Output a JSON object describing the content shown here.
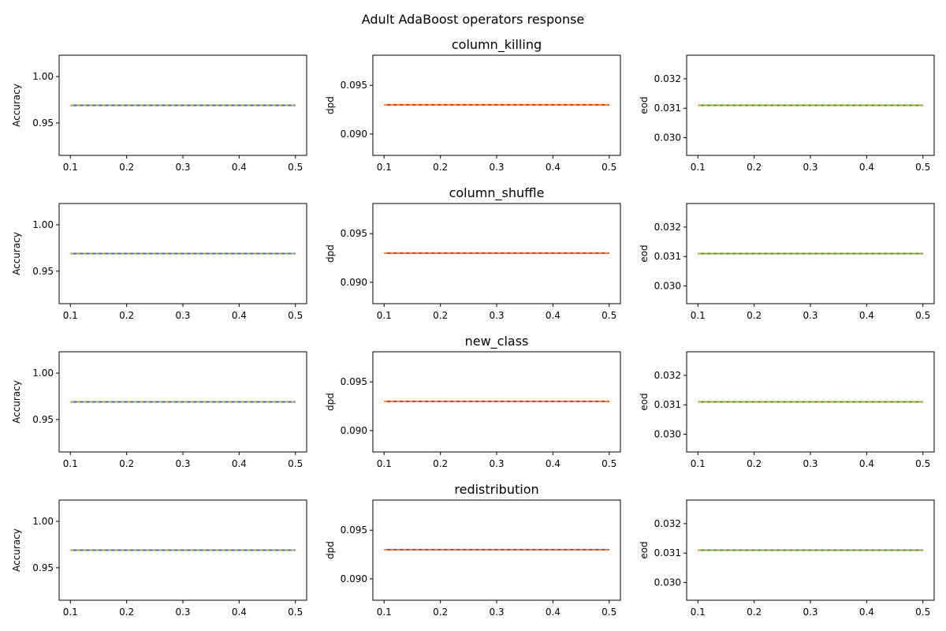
{
  "figure": {
    "suptitle": "Adult AdaBoost operators response"
  },
  "chart_data": [
    {
      "type": "line",
      "row": 0,
      "col": 0,
      "title": "",
      "xlabel": "",
      "ylabel": "Accuracy",
      "x": [
        0.1,
        0.5
      ],
      "xlim": [
        0.08,
        0.52
      ],
      "xticks": [
        "0.1",
        "0.2",
        "0.3",
        "0.4",
        "0.5"
      ],
      "ylim": [
        0.915,
        1.023
      ],
      "yticks": [
        "0.95",
        "1.00"
      ],
      "series": [
        {
          "values": [
            0.969,
            0.969
          ],
          "color": "#1f77b4",
          "dash": "solid"
        },
        {
          "values": [
            0.969,
            0.969
          ],
          "color": "#ff9f1c",
          "dash": "dashed"
        }
      ]
    },
    {
      "type": "line",
      "row": 0,
      "col": 1,
      "title": "column_killing",
      "xlabel": "",
      "ylabel": "dpd",
      "x": [
        0.1,
        0.5
      ],
      "xlim": [
        0.08,
        0.52
      ],
      "xticks": [
        "0.1",
        "0.2",
        "0.3",
        "0.4",
        "0.5"
      ],
      "ylim": [
        0.0878,
        0.0981
      ],
      "yticks": [
        "0.090",
        "0.095"
      ],
      "series": [
        {
          "values": [
            0.093,
            0.093
          ],
          "color": "#d62728",
          "dash": "solid"
        },
        {
          "values": [
            0.093,
            0.093
          ],
          "color": "#ff9f1c",
          "dash": "dashed"
        }
      ]
    },
    {
      "type": "line",
      "row": 0,
      "col": 2,
      "title": "",
      "xlabel": "",
      "ylabel": "eod",
      "x": [
        0.1,
        0.5
      ],
      "xlim": [
        0.08,
        0.52
      ],
      "xticks": [
        "0.1",
        "0.2",
        "0.3",
        "0.4",
        "0.5"
      ],
      "ylim": [
        0.0294,
        0.0328
      ],
      "yticks": [
        "0.030",
        "0.031",
        "0.032"
      ],
      "series": [
        {
          "values": [
            0.0311,
            0.0311
          ],
          "color": "#2ca02c",
          "dash": "solid"
        },
        {
          "values": [
            0.0311,
            0.0311
          ],
          "color": "#ff9f1c",
          "dash": "dashed"
        }
      ]
    },
    {
      "type": "line",
      "row": 1,
      "col": 0,
      "title": "",
      "xlabel": "",
      "ylabel": "Accuracy",
      "x": [
        0.1,
        0.5
      ],
      "xlim": [
        0.08,
        0.52
      ],
      "xticks": [
        "0.1",
        "0.2",
        "0.3",
        "0.4",
        "0.5"
      ],
      "ylim": [
        0.915,
        1.023
      ],
      "yticks": [
        "0.95",
        "1.00"
      ],
      "series": [
        {
          "values": [
            0.969,
            0.969
          ],
          "color": "#1f77b4",
          "dash": "solid"
        },
        {
          "values": [
            0.969,
            0.969
          ],
          "color": "#ff9f1c",
          "dash": "dashed"
        }
      ]
    },
    {
      "type": "line",
      "row": 1,
      "col": 1,
      "title": "column_shuffle",
      "xlabel": "",
      "ylabel": "dpd",
      "x": [
        0.1,
        0.5
      ],
      "xlim": [
        0.08,
        0.52
      ],
      "xticks": [
        "0.1",
        "0.2",
        "0.3",
        "0.4",
        "0.5"
      ],
      "ylim": [
        0.0878,
        0.0981
      ],
      "yticks": [
        "0.090",
        "0.095"
      ],
      "series": [
        {
          "values": [
            0.093,
            0.093
          ],
          "color": "#d62728",
          "dash": "solid"
        },
        {
          "values": [
            0.093,
            0.093
          ],
          "color": "#ff9f1c",
          "dash": "dashed"
        }
      ]
    },
    {
      "type": "line",
      "row": 1,
      "col": 2,
      "title": "",
      "xlabel": "",
      "ylabel": "eod",
      "x": [
        0.1,
        0.5
      ],
      "xlim": [
        0.08,
        0.52
      ],
      "xticks": [
        "0.1",
        "0.2",
        "0.3",
        "0.4",
        "0.5"
      ],
      "ylim": [
        0.0294,
        0.0328
      ],
      "yticks": [
        "0.030",
        "0.031",
        "0.032"
      ],
      "series": [
        {
          "values": [
            0.0311,
            0.0311
          ],
          "color": "#2ca02c",
          "dash": "solid"
        },
        {
          "values": [
            0.0311,
            0.0311
          ],
          "color": "#ff9f1c",
          "dash": "dashed"
        }
      ]
    },
    {
      "type": "line",
      "row": 2,
      "col": 0,
      "title": "",
      "xlabel": "",
      "ylabel": "Accuracy",
      "x": [
        0.1,
        0.5
      ],
      "xlim": [
        0.08,
        0.52
      ],
      "xticks": [
        "0.1",
        "0.2",
        "0.3",
        "0.4",
        "0.5"
      ],
      "ylim": [
        0.915,
        1.023
      ],
      "yticks": [
        "0.95",
        "1.00"
      ],
      "series": [
        {
          "values": [
            0.969,
            0.969
          ],
          "color": "#1f77b4",
          "dash": "solid"
        },
        {
          "values": [
            0.969,
            0.969
          ],
          "color": "#ff9f1c",
          "dash": "dashed"
        }
      ]
    },
    {
      "type": "line",
      "row": 2,
      "col": 1,
      "title": "new_class",
      "xlabel": "",
      "ylabel": "dpd",
      "x": [
        0.1,
        0.5
      ],
      "xlim": [
        0.08,
        0.52
      ],
      "xticks": [
        "0.1",
        "0.2",
        "0.3",
        "0.4",
        "0.5"
      ],
      "ylim": [
        0.0878,
        0.0981
      ],
      "yticks": [
        "0.090",
        "0.095"
      ],
      "series": [
        {
          "values": [
            0.093,
            0.093
          ],
          "color": "#d62728",
          "dash": "solid"
        },
        {
          "values": [
            0.093,
            0.093
          ],
          "color": "#ff9f1c",
          "dash": "dashed"
        }
      ]
    },
    {
      "type": "line",
      "row": 2,
      "col": 2,
      "title": "",
      "xlabel": "",
      "ylabel": "eod",
      "x": [
        0.1,
        0.5
      ],
      "xlim": [
        0.08,
        0.52
      ],
      "xticks": [
        "0.1",
        "0.2",
        "0.3",
        "0.4",
        "0.5"
      ],
      "ylim": [
        0.0294,
        0.0328
      ],
      "yticks": [
        "0.030",
        "0.031",
        "0.032"
      ],
      "series": [
        {
          "values": [
            0.0311,
            0.0311
          ],
          "color": "#2ca02c",
          "dash": "solid"
        },
        {
          "values": [
            0.0311,
            0.0311
          ],
          "color": "#ff9f1c",
          "dash": "dashed"
        }
      ]
    },
    {
      "type": "line",
      "row": 3,
      "col": 0,
      "title": "",
      "xlabel": "",
      "ylabel": "Accuracy",
      "x": [
        0.1,
        0.5
      ],
      "xlim": [
        0.08,
        0.52
      ],
      "xticks": [
        "0.1",
        "0.2",
        "0.3",
        "0.4",
        "0.5"
      ],
      "ylim": [
        0.915,
        1.023
      ],
      "yticks": [
        "0.95",
        "1.00"
      ],
      "series": [
        {
          "values": [
            0.969,
            0.969
          ],
          "color": "#1f77b4",
          "dash": "solid"
        },
        {
          "values": [
            0.969,
            0.969
          ],
          "color": "#ff9f1c",
          "dash": "dashed"
        }
      ]
    },
    {
      "type": "line",
      "row": 3,
      "col": 1,
      "title": "redistribution",
      "xlabel": "",
      "ylabel": "dpd",
      "x": [
        0.1,
        0.5
      ],
      "xlim": [
        0.08,
        0.52
      ],
      "xticks": [
        "0.1",
        "0.2",
        "0.3",
        "0.4",
        "0.5"
      ],
      "ylim": [
        0.0878,
        0.0981
      ],
      "yticks": [
        "0.090",
        "0.095"
      ],
      "series": [
        {
          "values": [
            0.093,
            0.093
          ],
          "color": "#d62728",
          "dash": "solid"
        },
        {
          "values": [
            0.093,
            0.093
          ],
          "color": "#ff9f1c",
          "dash": "dashed"
        }
      ]
    },
    {
      "type": "line",
      "row": 3,
      "col": 2,
      "title": "",
      "xlabel": "",
      "ylabel": "eod",
      "x": [
        0.1,
        0.5
      ],
      "xlim": [
        0.08,
        0.52
      ],
      "xticks": [
        "0.1",
        "0.2",
        "0.3",
        "0.4",
        "0.5"
      ],
      "ylim": [
        0.0294,
        0.0328
      ],
      "yticks": [
        "0.030",
        "0.031",
        "0.032"
      ],
      "series": [
        {
          "values": [
            0.0311,
            0.0311
          ],
          "color": "#2ca02c",
          "dash": "solid"
        },
        {
          "values": [
            0.0311,
            0.0311
          ],
          "color": "#ff9f1c",
          "dash": "dashed"
        }
      ]
    }
  ]
}
